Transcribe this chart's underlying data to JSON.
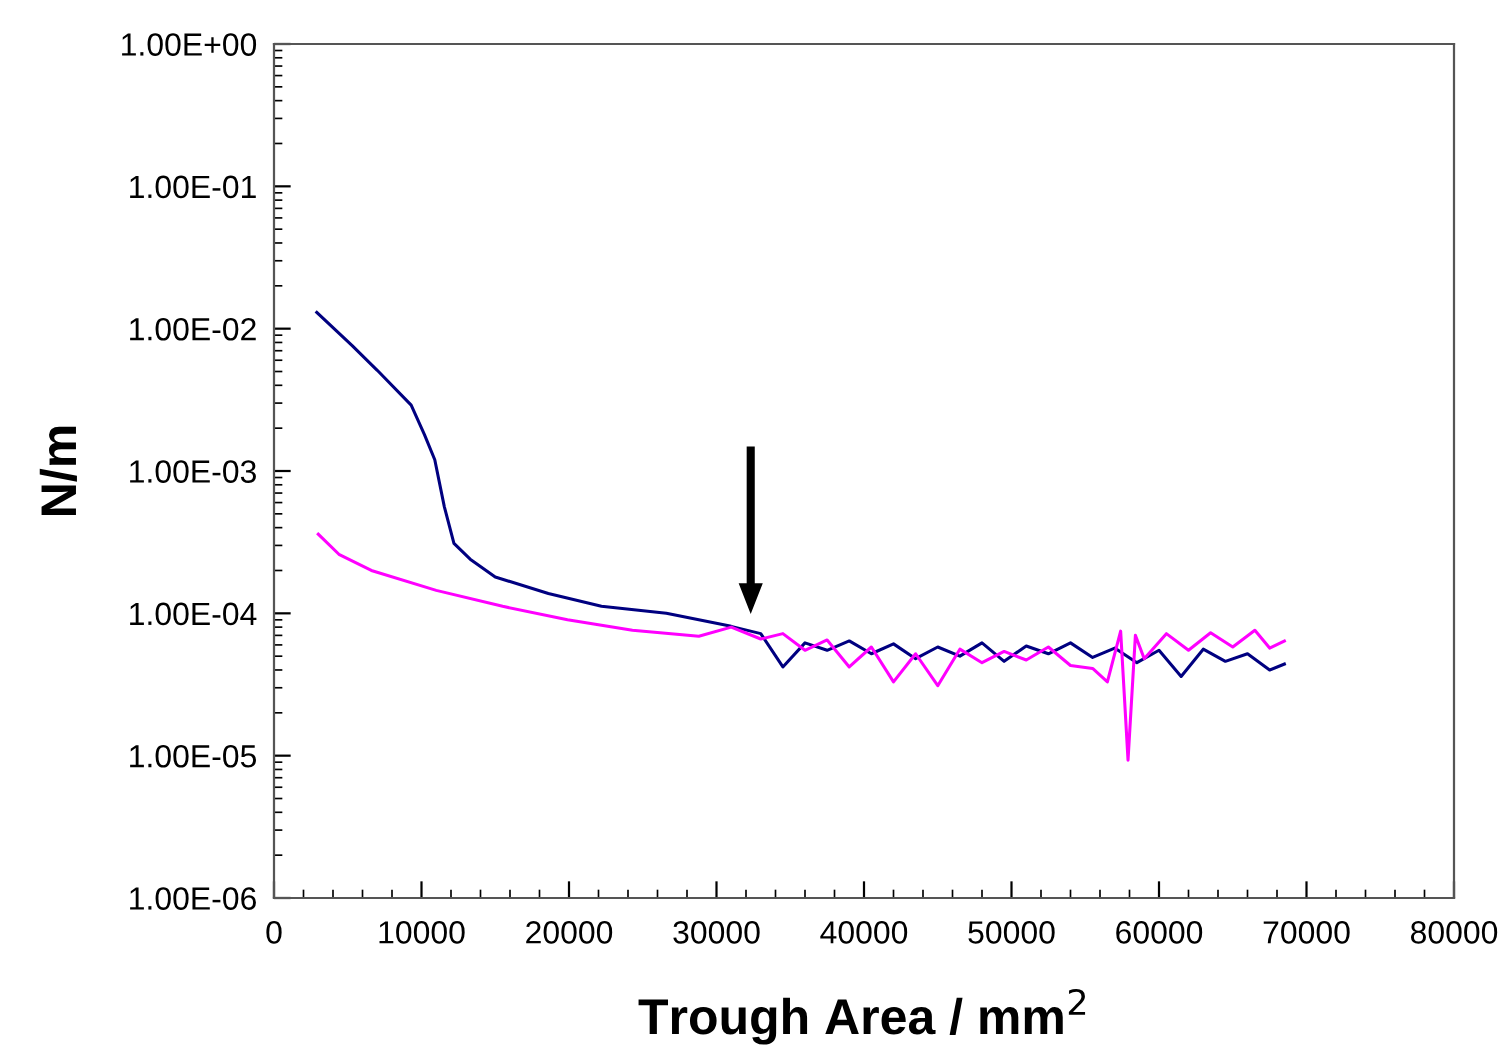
{
  "chart_data": {
    "type": "line",
    "xlabel": "Trough Area / mm$^{2}$",
    "ylabel": "N/m",
    "log": "y",
    "xlim": [
      0,
      80000
    ],
    "ylim": [
      1e-06,
      1
    ],
    "xticks": [
      0,
      10000,
      20000,
      30000,
      40000,
      50000,
      60000,
      70000,
      80000
    ],
    "yticks": [
      {
        "value": 1e-06,
        "label": "1.00E-06"
      },
      {
        "value": 1e-05,
        "label": "1.00E-05"
      },
      {
        "value": 0.0001,
        "label": "1.00E-04"
      },
      {
        "value": 0.001,
        "label": "1.00E-03"
      },
      {
        "value": 0.01,
        "label": "1.00E-02"
      },
      {
        "value": 0.1,
        "label": "1.00E-01"
      },
      {
        "value": 1,
        "label": "1.00E+00"
      }
    ],
    "grid": false,
    "legend": false,
    "marker": "none",
    "line_style": "solid",
    "series": [
      {
        "color": "#000080",
        "x": [
          2900,
          5300,
          7000,
          9300,
          10200,
          10900,
          11550,
          12200,
          13300,
          15000,
          18600,
          22200,
          26600,
          31000,
          33000,
          34500,
          36000,
          37500,
          39000,
          40500,
          42000,
          43500,
          45000,
          46500,
          48000,
          49500,
          51000,
          52500,
          54000,
          55500,
          57000,
          58500,
          60000,
          61500,
          63000,
          64500,
          66000,
          67500,
          68500
        ],
        "values": [
          0.013,
          0.0076,
          0.0051,
          0.0029,
          0.0018,
          0.0012,
          0.00056,
          0.00031,
          0.00024,
          0.00018,
          0.000138,
          0.000112,
          0.0001,
          8.1e-05,
          7.2e-05,
          4.2e-05,
          6.2e-05,
          5.5e-05,
          6.4e-05,
          5.2e-05,
          6.1e-05,
          4.8e-05,
          5.8e-05,
          5e-05,
          6.2e-05,
          4.6e-05,
          5.9e-05,
          5.2e-05,
          6.2e-05,
          4.9e-05,
          5.7e-05,
          4.5e-05,
          5.5e-05,
          3.6e-05,
          5.6e-05,
          4.6e-05,
          5.2e-05,
          4e-05,
          4.4e-05
        ]
      },
      {
        "color": "#ff00ff",
        "x": [
          3000,
          4400,
          6600,
          11000,
          15500,
          19900,
          24300,
          28800,
          31000,
          33000,
          34500,
          36000,
          37500,
          39000,
          40500,
          42000,
          43500,
          45000,
          46500,
          48000,
          49500,
          51000,
          52500,
          54000,
          55500,
          56500,
          57400,
          57900,
          58400,
          59000,
          60500,
          62000,
          63500,
          65000,
          66500,
          67500,
          68500
        ],
        "values": [
          0.00036,
          0.00026,
          0.0002,
          0.000145,
          0.000112,
          9e-05,
          7.6e-05,
          6.9e-05,
          8e-05,
          6.6e-05,
          7.2e-05,
          5.5e-05,
          6.5e-05,
          4.2e-05,
          5.8e-05,
          3.3e-05,
          5.2e-05,
          3.1e-05,
          5.6e-05,
          4.5e-05,
          5.4e-05,
          4.7e-05,
          5.8e-05,
          4.3e-05,
          4.1e-05,
          3.3e-05,
          7.5e-05,
          9.3e-06,
          7e-05,
          4.8e-05,
          7.2e-05,
          5.5e-05,
          7.3e-05,
          5.8e-05,
          7.6e-05,
          5.7e-05,
          6.4e-05
        ]
      }
    ]
  }
}
